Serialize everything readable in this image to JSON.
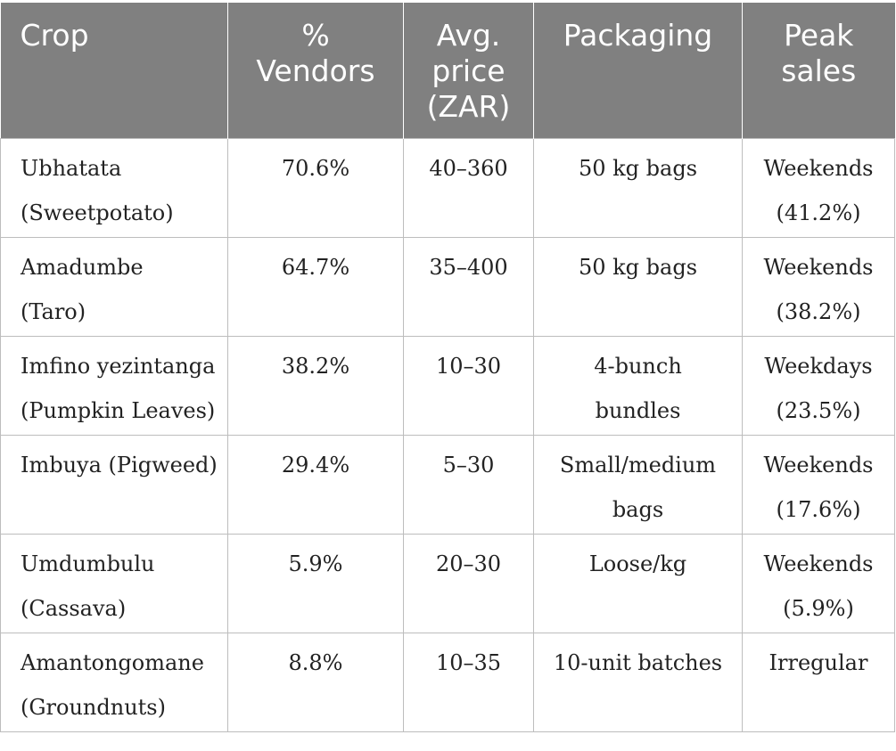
{
  "table": {
    "headers": [
      "Crop",
      "%\nVendors",
      "Avg.\nprice\n(ZAR)",
      "Packaging",
      "Peak\nsales"
    ],
    "rows": [
      [
        "Ubhatata\n(Sweetpotato)",
        "70.6%",
        "40–360",
        "50 kg bags",
        "Weekends\n(41.2%)"
      ],
      [
        "Amadumbe\n(Taro)",
        "64.7%",
        "35–400",
        "50 kg bags",
        "Weekends\n(38.2%)"
      ],
      [
        "Imfino yezintanga\n(Pumpkin Leaves)",
        "38.2%",
        "10–30",
        "4-bunch\nbundles",
        "Weekdays\n(23.5%)"
      ],
      [
        "Imbuya (Pigweed)",
        "29.4%",
        "5–30",
        "Small/medium\nbags",
        "Weekends\n(17.6%)"
      ],
      [
        "Umdumbulu\n(Cassava)",
        "5.9%",
        "20–30",
        "Loose/kg",
        "Weekends\n(5.9%)"
      ],
      [
        "Amantongomane\n(Groundnuts)",
        "8.8%",
        "10–35",
        "10-unit batches",
        "Irregular"
      ]
    ]
  },
  "colors": {
    "header_background": "#808080",
    "header_text": "#ffffff",
    "cell_text": "#222222",
    "grid_line": "#bdbdbd"
  }
}
